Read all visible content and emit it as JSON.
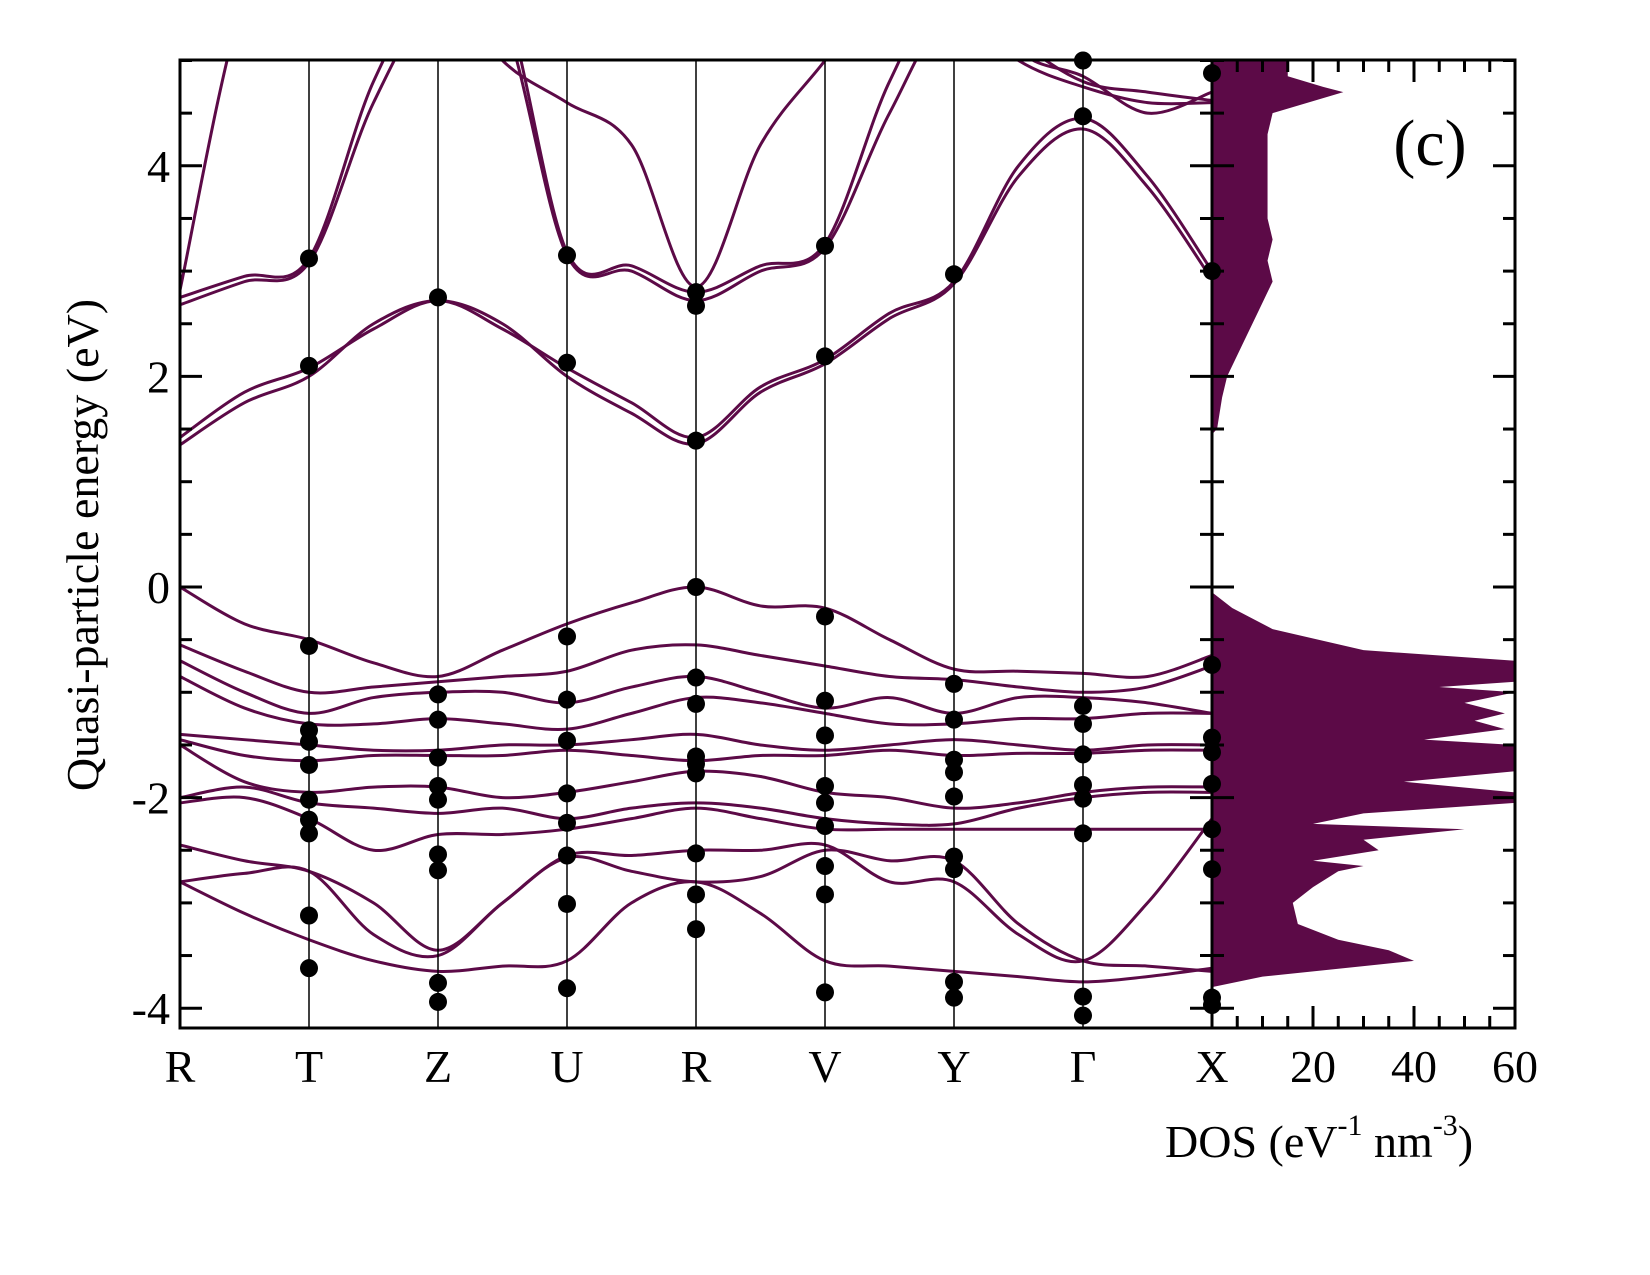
{
  "chart_data": {
    "type": "line",
    "panel_label": "(c)",
    "ylabel": "Quasi-particle energy (eV)",
    "ylim": [
      -4.2,
      5.0
    ],
    "yticks": [
      "-4",
      "-2",
      "0",
      "2",
      "4"
    ],
    "ytick_values": [
      -4,
      -2,
      0,
      2,
      4
    ],
    "kpoints": [
      "R",
      "T",
      "Z",
      "U",
      "R",
      "V",
      "Y",
      "Γ",
      "X"
    ],
    "band_color": "#5c0a47",
    "dot_color": "#000000",
    "bands": [
      [
        1.35,
        1.75,
        2.0,
        2.5,
        2.72,
        2.5,
        2.0,
        1.65,
        1.36,
        1.85,
        2.12,
        2.55,
        2.88,
        3.9,
        4.35,
        3.8,
        2.92
      ],
      [
        1.42,
        1.85,
        2.08,
        2.45,
        2.72,
        2.45,
        2.08,
        1.75,
        1.42,
        1.9,
        2.16,
        2.6,
        2.9,
        4.0,
        4.45,
        3.9,
        3.0
      ],
      [
        2.68,
        2.9,
        3.08,
        4.6,
        5.6,
        5.4,
        3.15,
        3.0,
        2.72,
        3.0,
        3.22,
        4.5,
        5.5,
        5.0,
        4.75,
        4.6,
        4.6
      ],
      [
        2.75,
        2.95,
        3.12,
        4.8,
        5.8,
        5.6,
        3.18,
        3.05,
        2.8,
        3.05,
        3.26,
        4.8,
        5.8,
        5.2,
        4.8,
        4.7,
        4.62
      ],
      [
        2.82,
        5.6,
        6.2,
        6.0,
        5.8,
        5.0,
        4.6,
        4.2,
        2.85,
        4.2,
        5.0,
        5.8,
        6.0,
        5.1,
        4.85,
        4.5,
        4.7
      ],
      [
        0.0,
        -0.35,
        -0.5,
        -0.72,
        -0.85,
        -0.6,
        -0.35,
        -0.15,
        0.0,
        -0.18,
        -0.2,
        -0.5,
        -0.78,
        -0.8,
        -0.82,
        -0.85,
        -0.65
      ],
      [
        -0.55,
        -0.8,
        -1.0,
        -0.95,
        -0.9,
        -0.85,
        -0.8,
        -0.6,
        -0.55,
        -0.65,
        -0.75,
        -0.85,
        -0.88,
        -0.95,
        -1.0,
        -0.95,
        -0.75
      ],
      [
        -0.7,
        -1.0,
        -1.2,
        -1.05,
        -1.0,
        -1.0,
        -1.1,
        -0.95,
        -0.85,
        -1.0,
        -1.15,
        -1.05,
        -1.2,
        -1.05,
        -1.05,
        -1.1,
        -1.2
      ],
      [
        -0.85,
        -1.15,
        -1.3,
        -1.3,
        -1.25,
        -1.3,
        -1.35,
        -1.2,
        -1.05,
        -1.1,
        -1.2,
        -1.3,
        -1.3,
        -1.25,
        -1.25,
        -1.2,
        -1.2
      ],
      [
        -1.4,
        -1.45,
        -1.5,
        -1.55,
        -1.55,
        -1.5,
        -1.5,
        -1.45,
        -1.4,
        -1.5,
        -1.55,
        -1.5,
        -1.45,
        -1.5,
        -1.55,
        -1.5,
        -1.5
      ],
      [
        -1.45,
        -1.6,
        -1.65,
        -1.6,
        -1.6,
        -1.6,
        -1.55,
        -1.6,
        -1.65,
        -1.6,
        -1.6,
        -1.55,
        -1.6,
        -1.58,
        -1.58,
        -1.55,
        -1.55
      ],
      [
        -1.5,
        -1.85,
        -1.95,
        -1.9,
        -1.9,
        -2.0,
        -1.95,
        -1.85,
        -1.75,
        -1.8,
        -1.95,
        -2.0,
        -2.1,
        -2.05,
        -1.95,
        -1.9,
        -1.9
      ],
      [
        -2.0,
        -1.9,
        -2.05,
        -2.1,
        -2.15,
        -2.1,
        -2.2,
        -2.1,
        -2.05,
        -2.1,
        -2.2,
        -2.25,
        -2.25,
        -2.1,
        -2.0,
        -1.95,
        -1.95
      ],
      [
        -2.05,
        -2.0,
        -2.2,
        -2.5,
        -2.35,
        -2.35,
        -2.3,
        -2.2,
        -2.1,
        -2.2,
        -2.3,
        -2.3,
        -2.3,
        -2.3,
        -2.3,
        -2.3,
        -2.3
      ],
      [
        -2.45,
        -2.6,
        -2.7,
        -3.0,
        -3.45,
        -3.0,
        -2.55,
        -2.55,
        -2.5,
        -2.5,
        -2.45,
        -2.8,
        -2.8,
        -3.3,
        -3.55,
        -3.0,
        -2.2
      ],
      [
        -2.8,
        -2.72,
        -2.7,
        -3.3,
        -3.5,
        -3.0,
        -2.57,
        -2.7,
        -2.8,
        -2.75,
        -2.5,
        -2.6,
        -2.6,
        -3.2,
        -3.55,
        -3.6,
        -3.65
      ],
      [
        -2.8,
        -3.1,
        -3.35,
        -3.55,
        -3.65,
        -3.6,
        -3.55,
        -3.0,
        -2.8,
        -3.1,
        -3.55,
        -3.6,
        -3.65,
        -3.7,
        -3.75,
        -3.7,
        -3.62
      ]
    ],
    "dots": [
      {
        "k": 1,
        "E": [
          3.12,
          2.1,
          -0.56,
          -1.36,
          -1.47,
          -1.69,
          -2.02,
          -2.21,
          -2.34,
          -3.12,
          -3.62
        ]
      },
      {
        "k": 2,
        "E": [
          2.75,
          -1.02,
          -1.26,
          -1.62,
          -1.89,
          -2.02,
          -2.54,
          -2.69,
          -3.76,
          -3.94
        ]
      },
      {
        "k": 3,
        "E": [
          3.15,
          2.13,
          -0.47,
          -1.07,
          -1.46,
          -1.96,
          -2.24,
          -2.55,
          -3.01,
          -3.81
        ]
      },
      {
        "k": 4,
        "E": [
          2.8,
          2.67,
          1.39,
          0.0,
          -0.86,
          -1.11,
          -1.61,
          -1.68,
          -1.77,
          -2.53,
          -2.92,
          -3.25
        ]
      },
      {
        "k": 5,
        "E": [
          3.24,
          2.19,
          -0.28,
          -1.08,
          -1.41,
          -1.89,
          -2.05,
          -2.27,
          -2.65,
          -2.92,
          -3.85
        ]
      },
      {
        "k": 6,
        "E": [
          2.97,
          -0.92,
          -1.26,
          -1.64,
          -1.76,
          -1.99,
          -2.56,
          -2.68,
          -3.75,
          -3.9
        ]
      },
      {
        "k": 7,
        "E": [
          5.0,
          4.47,
          -1.13,
          -1.3,
          -1.59,
          -1.88,
          -2.01,
          -2.34,
          -3.89,
          -4.07
        ]
      },
      {
        "k": 8,
        "E": [
          4.88,
          3.0,
          -0.74,
          -1.43,
          -1.57,
          -1.87,
          -2.3,
          -2.68,
          -3.9,
          -3.97
        ]
      }
    ],
    "dos": {
      "xlabel_main": "DOS (eV",
      "xlabel_sup1": "-1",
      "xlabel_mid": " nm",
      "xlabel_sup2": "-3",
      "xlabel_end": ")",
      "xlim": [
        0,
        60
      ],
      "xticks": [
        "20",
        "40",
        "60"
      ],
      "xtick_values": [
        20,
        40,
        60
      ],
      "fill_color": "#5c0a47",
      "conduction": [
        [
          1.45,
          0
        ],
        [
          1.5,
          1
        ],
        [
          1.8,
          2
        ],
        [
          2.0,
          3
        ],
        [
          2.3,
          6
        ],
        [
          2.6,
          9
        ],
        [
          2.8,
          11
        ],
        [
          2.9,
          12
        ],
        [
          3.1,
          11
        ],
        [
          3.3,
          12
        ],
        [
          3.5,
          11
        ],
        [
          4.0,
          11
        ],
        [
          4.3,
          11
        ],
        [
          4.5,
          12
        ],
        [
          4.6,
          19
        ],
        [
          4.7,
          26
        ],
        [
          4.75,
          22
        ],
        [
          4.85,
          15
        ],
        [
          5.0,
          15
        ]
      ],
      "valence": [
        [
          -0.05,
          0
        ],
        [
          -0.2,
          4
        ],
        [
          -0.4,
          12
        ],
        [
          -0.6,
          30
        ],
        [
          -0.7,
          60
        ],
        [
          -0.9,
          60
        ],
        [
          -0.95,
          45
        ],
        [
          -1.0,
          60
        ],
        [
          -1.1,
          50
        ],
        [
          -1.2,
          58
        ],
        [
          -1.27,
          52
        ],
        [
          -1.35,
          58
        ],
        [
          -1.45,
          42
        ],
        [
          -1.5,
          60
        ],
        [
          -1.75,
          60
        ],
        [
          -1.85,
          38
        ],
        [
          -1.95,
          60
        ],
        [
          -2.05,
          60
        ],
        [
          -2.15,
          30
        ],
        [
          -2.25,
          20
        ],
        [
          -2.3,
          50
        ],
        [
          -2.4,
          30
        ],
        [
          -2.5,
          33
        ],
        [
          -2.6,
          20
        ],
        [
          -2.65,
          30
        ],
        [
          -2.7,
          25
        ],
        [
          -2.85,
          20
        ],
        [
          -3.0,
          16
        ],
        [
          -3.2,
          17
        ],
        [
          -3.35,
          25
        ],
        [
          -3.45,
          35
        ],
        [
          -3.55,
          40
        ],
        [
          -3.6,
          30
        ],
        [
          -3.7,
          10
        ],
        [
          -3.8,
          0
        ]
      ]
    }
  }
}
